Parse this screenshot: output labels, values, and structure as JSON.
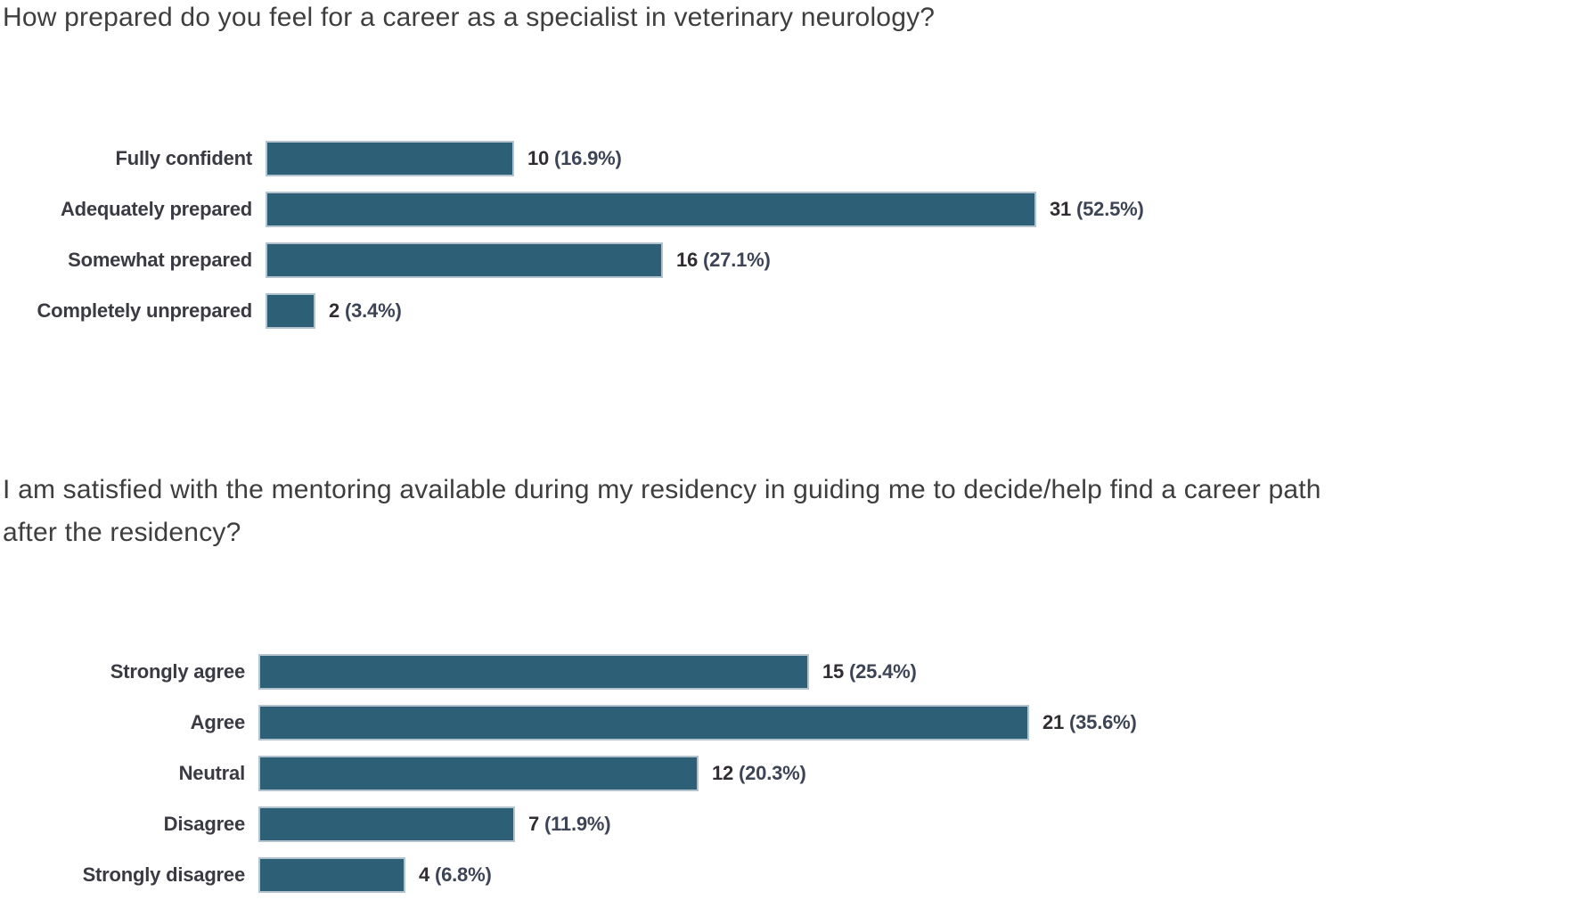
{
  "page": {
    "background": "#ffffff"
  },
  "colors": {
    "bar_fill": "#2d5f77",
    "bar_border": "#b3c4cf",
    "title_text": "#3e3e3e",
    "category_text": "#3a3a42",
    "count_text": "#302c31",
    "percent_text": "#3d4456"
  },
  "chart_data": [
    {
      "type": "bar",
      "orientation": "horizontal",
      "title": "How prepared do you feel for a career as a specialist in veterinary neurology?",
      "title_lines": [
        "How prepared do you feel for a career as a specialist in veterinary neurology?"
      ],
      "categories": [
        "Fully confident",
        "Adequately prepared",
        "Somewhat prepared",
        "Completely unprepared"
      ],
      "values": [
        10,
        31,
        16,
        2
      ],
      "percent_labels": [
        "(16.9%)",
        "(52.5%)",
        "(27.1%)",
        "(3.4%)"
      ],
      "value_label_format": "count (percent)",
      "xlabel": "",
      "ylabel": "",
      "legend": "none",
      "grid": false,
      "axis_ticks_visible": false
    },
    {
      "type": "bar",
      "orientation": "horizontal",
      "title": "I am satisfied with the mentoring available during my residency in guiding me to decide/help find a career path after the residency?",
      "title_lines": [
        "I am satisfied with the mentoring available during my residency in guiding me to decide/help find a career path",
        "after the residency?"
      ],
      "categories": [
        "Strongly agree",
        "Agree",
        "Neutral",
        "Disagree",
        "Strongly disagree"
      ],
      "values": [
        15,
        21,
        12,
        7,
        4
      ],
      "percent_labels": [
        "(25.4%)",
        "(35.6%)",
        "(20.3%)",
        "(11.9%)",
        "(6.8%)"
      ],
      "value_label_format": "count (percent)",
      "xlabel": "",
      "ylabel": "",
      "legend": "none",
      "grid": false,
      "axis_ticks_visible": false
    }
  ]
}
